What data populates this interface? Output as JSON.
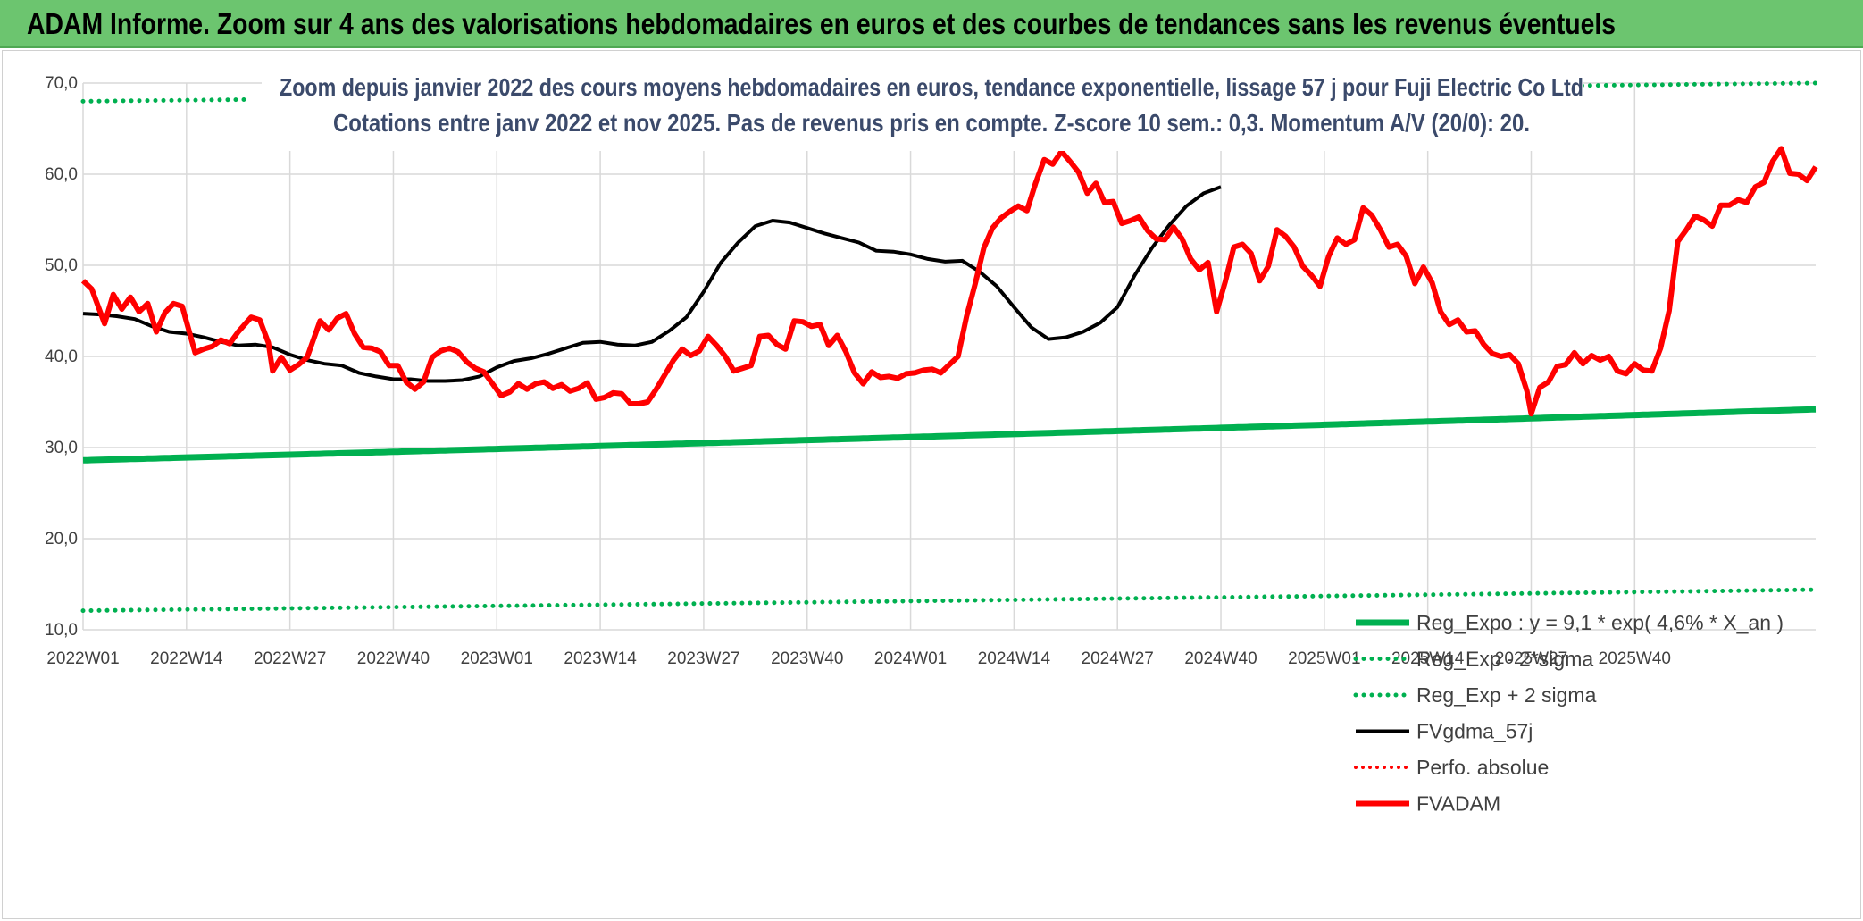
{
  "banner": {
    "title": "ADAM Informe. Zoom sur 4 ans des valorisations hebdomadaires en euros et des courbes de tendances sans les revenus éventuels"
  },
  "chart_data": {
    "type": "line",
    "title": "Zoom depuis janvier 2022 des cours moyens hebdomadaires en euros, tendance exponentielle, lissage 57 j pour Fuji Electric Co Ltd",
    "subtitle": "Cotations entre janv 2022 et nov 2025. Pas de revenus pris en compte. Z-score 10 sem.: 0,3. Momentum A/V (20/0): 20.",
    "xlabel": "",
    "ylabel": "",
    "ylim": [
      10,
      70
    ],
    "yticks": [
      "10,0",
      "20,0",
      "30,0",
      "40,0",
      "50,0",
      "60,0",
      "70,0"
    ],
    "x_tick_labels": [
      "2022W01",
      "2022W14",
      "2022W27",
      "2022W40",
      "2023W01",
      "2023W14",
      "2023W27",
      "2023W40",
      "2024W01",
      "2024W14",
      "2024W27",
      "2024W40",
      "2025W01",
      "2025W14",
      "2025W27",
      "2025W40"
    ],
    "weeks_count": 205,
    "grid": true,
    "legend_position": "bottom-right",
    "colors": {
      "reg_expo": "#00b050",
      "bands": "#00b050",
      "gdma": "#000000",
      "perfo": "#ff0000",
      "fvadam": "#ff0000"
    },
    "series": [
      {
        "name": "Reg_Expo : y = 9,1 * exp( 4,6% *  X_an )",
        "style": "solid-green-thick",
        "start": 28.6,
        "end": 34.2
      },
      {
        "name": "Reg_Exp - 2*sigma",
        "style": "dotted-green",
        "start": 12.1,
        "end": 14.4
      },
      {
        "name": "Reg_Exp + 2 sigma",
        "style": "dotted-green",
        "start": 68.0,
        "end": 70.0,
        "visible_ranges": [
          [
            0,
            20
          ],
          [
            168,
            204
          ]
        ]
      },
      {
        "name": "FVgdma_57j",
        "style": "solid-black",
        "points": [
          [
            0,
            44.7
          ],
          [
            4,
            44.6
          ],
          [
            8,
            44.4
          ],
          [
            12,
            44.1
          ],
          [
            16,
            43.3
          ],
          [
            20,
            42.7
          ],
          [
            24,
            42.5
          ],
          [
            28,
            42.1
          ],
          [
            32,
            41.6
          ],
          [
            36,
            41.2
          ],
          [
            40,
            41.3
          ],
          [
            44,
            41.0
          ],
          [
            48,
            40.2
          ],
          [
            52,
            39.6
          ],
          [
            56,
            39.2
          ],
          [
            60,
            39.0
          ],
          [
            64,
            38.2
          ],
          [
            68,
            37.8
          ],
          [
            72,
            37.5
          ],
          [
            76,
            37.5
          ],
          [
            80,
            37.3
          ],
          [
            84,
            37.3
          ],
          [
            88,
            37.4
          ],
          [
            92,
            37.8
          ],
          [
            96,
            38.8
          ],
          [
            100,
            39.5
          ],
          [
            104,
            39.8
          ],
          [
            108,
            40.3
          ],
          [
            112,
            40.9
          ],
          [
            116,
            41.5
          ],
          [
            120,
            41.6
          ],
          [
            124,
            41.3
          ],
          [
            128,
            41.2
          ],
          [
            132,
            41.6
          ],
          [
            136,
            42.8
          ],
          [
            140,
            44.3
          ],
          [
            144,
            47.1
          ],
          [
            148,
            50.3
          ],
          [
            152,
            52.5
          ],
          [
            156,
            54.3
          ],
          [
            160,
            54.9
          ],
          [
            164,
            54.7
          ],
          [
            168,
            54.1
          ],
          [
            172,
            53.5
          ],
          [
            176,
            53.0
          ],
          [
            180,
            52.5
          ],
          [
            184,
            51.6
          ],
          [
            188,
            51.5
          ],
          [
            192,
            51.2
          ],
          [
            196,
            50.7
          ],
          [
            200,
            50.4
          ],
          [
            204,
            50.5
          ],
          [
            208,
            49.3
          ],
          [
            212,
            47.7
          ],
          [
            216,
            45.4
          ],
          [
            220,
            43.2
          ],
          [
            224,
            41.9
          ],
          [
            228,
            42.1
          ],
          [
            232,
            42.7
          ],
          [
            236,
            43.7
          ],
          [
            240,
            45.4
          ],
          [
            244,
            48.9
          ],
          [
            248,
            51.9
          ],
          [
            252,
            54.4
          ],
          [
            256,
            56.5
          ],
          [
            260,
            57.9
          ],
          [
            264,
            58.6
          ]
        ]
      },
      {
        "name": "Perfo. absolue",
        "style": "dotted-red",
        "points": []
      },
      {
        "name": "FVADAM",
        "style": "solid-red-thick",
        "points": [
          [
            0,
            48.3
          ],
          [
            2,
            47.4
          ],
          [
            5,
            43.6
          ],
          [
            7,
            46.8
          ],
          [
            9,
            45.2
          ],
          [
            11,
            46.5
          ],
          [
            13,
            44.9
          ],
          [
            15,
            45.8
          ],
          [
            17,
            42.7
          ],
          [
            19,
            44.8
          ],
          [
            21,
            45.8
          ],
          [
            23,
            45.5
          ],
          [
            26,
            40.4
          ],
          [
            28,
            40.8
          ],
          [
            30,
            41.1
          ],
          [
            32,
            41.8
          ],
          [
            34,
            41.4
          ],
          [
            36,
            42.7
          ],
          [
            39,
            44.3
          ],
          [
            41,
            44.0
          ],
          [
            43,
            41.5
          ],
          [
            44,
            38.4
          ],
          [
            46,
            39.9
          ],
          [
            48,
            38.5
          ],
          [
            50,
            39.1
          ],
          [
            52,
            39.9
          ],
          [
            55,
            43.9
          ],
          [
            57,
            42.9
          ],
          [
            59,
            44.2
          ],
          [
            61,
            44.7
          ],
          [
            63,
            42.5
          ],
          [
            65,
            41.0
          ],
          [
            67,
            40.9
          ],
          [
            69,
            40.5
          ],
          [
            71,
            39.0
          ],
          [
            73,
            39.0
          ],
          [
            75,
            37.2
          ],
          [
            77,
            36.4
          ],
          [
            79,
            37.2
          ],
          [
            81,
            39.9
          ],
          [
            83,
            40.6
          ],
          [
            85,
            40.9
          ],
          [
            87,
            40.5
          ],
          [
            89,
            39.4
          ],
          [
            91,
            38.7
          ],
          [
            93,
            38.3
          ],
          [
            95,
            37.0
          ],
          [
            97,
            35.7
          ],
          [
            99,
            36.1
          ],
          [
            101,
            37.0
          ],
          [
            103,
            36.4
          ],
          [
            105,
            37.0
          ],
          [
            107,
            37.2
          ],
          [
            109,
            36.5
          ],
          [
            111,
            36.9
          ],
          [
            113,
            36.2
          ],
          [
            115,
            36.5
          ],
          [
            117,
            37.1
          ],
          [
            119,
            35.3
          ],
          [
            121,
            35.5
          ],
          [
            123,
            36.0
          ],
          [
            125,
            35.9
          ],
          [
            127,
            34.8
          ],
          [
            129,
            34.8
          ],
          [
            131,
            35.0
          ],
          [
            133,
            36.4
          ],
          [
            135,
            38.0
          ],
          [
            137,
            39.6
          ],
          [
            139,
            40.8
          ],
          [
            141,
            40.1
          ],
          [
            143,
            40.6
          ],
          [
            145,
            42.2
          ],
          [
            147,
            41.2
          ],
          [
            149,
            40.0
          ],
          [
            151,
            38.4
          ],
          [
            153,
            38.7
          ],
          [
            155,
            39.0
          ],
          [
            157,
            42.2
          ],
          [
            159,
            42.3
          ],
          [
            161,
            41.3
          ],
          [
            163,
            40.8
          ],
          [
            165,
            43.9
          ],
          [
            167,
            43.8
          ],
          [
            169,
            43.3
          ],
          [
            171,
            43.5
          ],
          [
            173,
            41.2
          ],
          [
            175,
            42.3
          ],
          [
            177,
            40.5
          ],
          [
            179,
            38.2
          ],
          [
            181,
            37.0
          ],
          [
            183,
            38.3
          ],
          [
            185,
            37.7
          ],
          [
            187,
            37.8
          ],
          [
            189,
            37.6
          ],
          [
            191,
            38.1
          ],
          [
            193,
            38.2
          ],
          [
            195,
            38.5
          ],
          [
            197,
            38.6
          ],
          [
            199,
            38.2
          ],
          [
            201,
            39.1
          ],
          [
            203,
            40.0
          ],
          [
            205,
            44.4
          ],
          [
            207,
            48.0
          ],
          [
            209,
            51.9
          ],
          [
            211,
            54.1
          ],
          [
            213,
            55.2
          ],
          [
            215,
            55.9
          ],
          [
            217,
            56.5
          ],
          [
            219,
            56.0
          ],
          [
            221,
            59.0
          ],
          [
            223,
            61.6
          ],
          [
            225,
            61.1
          ],
          [
            227,
            62.5
          ],
          [
            229,
            61.4
          ],
          [
            231,
            60.2
          ],
          [
            233,
            57.9
          ],
          [
            235,
            59.0
          ],
          [
            237,
            56.9
          ],
          [
            239,
            57.0
          ],
          [
            241,
            54.6
          ],
          [
            243,
            54.9
          ],
          [
            245,
            55.3
          ],
          [
            247,
            53.8
          ],
          [
            249,
            52.9
          ],
          [
            251,
            52.8
          ],
          [
            253,
            54.2
          ],
          [
            255,
            52.9
          ],
          [
            257,
            50.7
          ],
          [
            259,
            49.5
          ],
          [
            261,
            50.3
          ],
          [
            263,
            44.9
          ],
          [
            265,
            48.2
          ],
          [
            267,
            52.0
          ],
          [
            269,
            52.3
          ],
          [
            271,
            51.3
          ],
          [
            273,
            48.3
          ],
          [
            275,
            49.9
          ],
          [
            277,
            53.9
          ],
          [
            279,
            53.2
          ],
          [
            281,
            52.0
          ],
          [
            283,
            49.9
          ],
          [
            285,
            48.9
          ],
          [
            287,
            47.7
          ],
          [
            289,
            51.0
          ],
          [
            291,
            53.0
          ],
          [
            293,
            52.3
          ],
          [
            295,
            52.8
          ],
          [
            297,
            56.3
          ],
          [
            299,
            55.5
          ],
          [
            301,
            53.9
          ],
          [
            303,
            52.0
          ],
          [
            305,
            52.3
          ],
          [
            307,
            51.0
          ],
          [
            309,
            48.0
          ],
          [
            311,
            49.8
          ],
          [
            313,
            48.1
          ],
          [
            315,
            44.9
          ],
          [
            317,
            43.5
          ],
          [
            319,
            44.0
          ],
          [
            321,
            42.7
          ],
          [
            323,
            42.8
          ],
          [
            325,
            41.3
          ],
          [
            327,
            40.3
          ],
          [
            329,
            40.0
          ],
          [
            331,
            40.2
          ],
          [
            333,
            39.2
          ],
          [
            335,
            36.2
          ],
          [
            336,
            33.7
          ],
          [
            338,
            36.6
          ],
          [
            340,
            37.2
          ],
          [
            342,
            38.9
          ],
          [
            344,
            39.1
          ],
          [
            346,
            40.4
          ],
          [
            348,
            39.2
          ],
          [
            350,
            40.1
          ],
          [
            352,
            39.6
          ],
          [
            354,
            40.0
          ],
          [
            356,
            38.4
          ],
          [
            358,
            38.1
          ],
          [
            360,
            39.2
          ],
          [
            362,
            38.5
          ],
          [
            364,
            38.4
          ],
          [
            366,
            40.9
          ],
          [
            368,
            45.0
          ],
          [
            370,
            52.6
          ],
          [
            372,
            53.9
          ],
          [
            374,
            55.4
          ],
          [
            376,
            55.0
          ],
          [
            378,
            54.3
          ],
          [
            380,
            56.6
          ],
          [
            382,
            56.6
          ],
          [
            384,
            57.2
          ],
          [
            386,
            56.9
          ],
          [
            388,
            58.6
          ],
          [
            390,
            59.1
          ],
          [
            392,
            61.4
          ],
          [
            394,
            62.8
          ],
          [
            396,
            60.1
          ],
          [
            398,
            60.0
          ],
          [
            400,
            59.3
          ],
          [
            402,
            60.8
          ]
        ]
      }
    ]
  }
}
